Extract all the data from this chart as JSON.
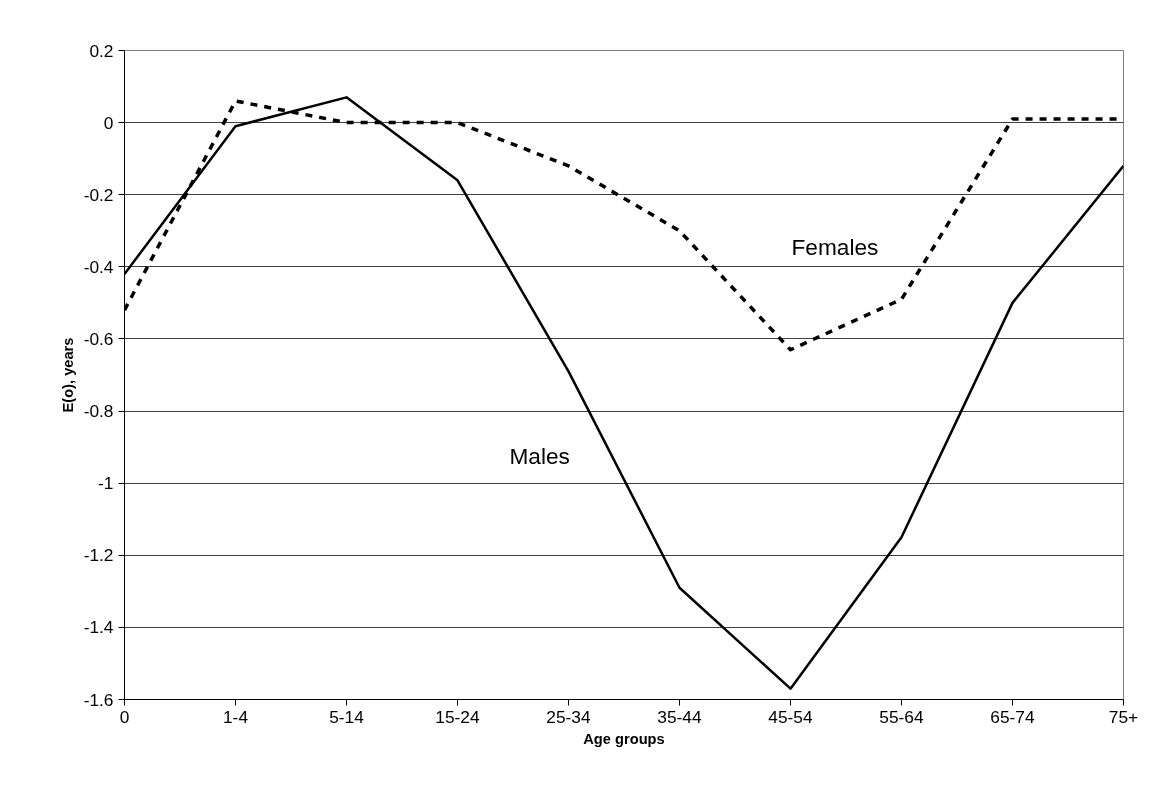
{
  "chart_data": {
    "type": "line",
    "xlabel": "Age groups",
    "ylabel": "E(o), years",
    "categories": [
      "0",
      "1-4",
      "5-14",
      "15-24",
      "25-34",
      "35-44",
      "45-54",
      "55-64",
      "65-74",
      "75+"
    ],
    "series": [
      {
        "name": "Males",
        "color": "#000000",
        "line_style": "solid",
        "values": [
          -0.42,
          -0.01,
          0.07,
          -0.16,
          -0.69,
          -1.29,
          -1.57,
          -1.15,
          -0.5,
          -0.12
        ]
      },
      {
        "name": "Females",
        "color": "#000000",
        "line_style": "dashed",
        "values": [
          -0.52,
          0.06,
          0.0,
          0.0,
          -0.12,
          -0.3,
          -0.63,
          -0.49,
          0.01,
          0.01
        ]
      }
    ],
    "ylim": [
      -1.6,
      0.2
    ],
    "yticks": [
      0.2,
      0,
      -0.2,
      -0.4,
      -0.6,
      -0.8,
      -1,
      -1.2,
      -1.4,
      -1.6
    ],
    "grid": "y",
    "marker": "none"
  }
}
